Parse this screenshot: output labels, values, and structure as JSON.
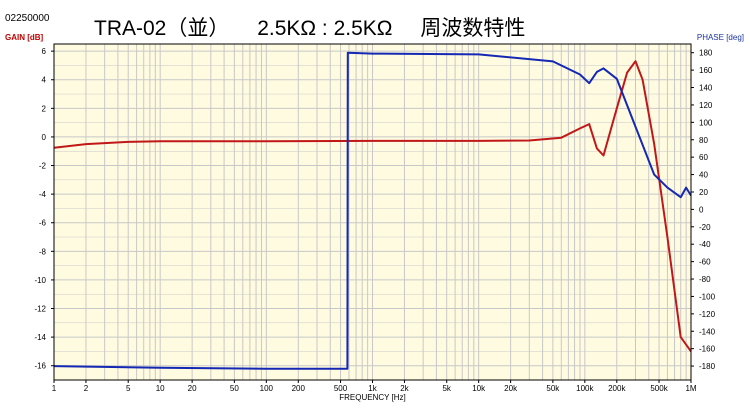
{
  "header": {
    "code": "02250000",
    "title_parts": [
      "TRA-02（並）",
      "2.5KΩ : 2.5KΩ",
      "周波数特性"
    ]
  },
  "colors": {
    "plot_bg": "#fffbe0",
    "grid": "#c8c8c8",
    "gain_series": "#c01818",
    "phase_series": "#1428b4",
    "gain_label": "#c00000",
    "phase_label": "#1a33a0"
  },
  "chart_data": {
    "type": "line",
    "title": "TRA-02（並）　2.5KΩ : 2.5KΩ　　周波数特性",
    "xlabel": "FREQUENCY [Hz]",
    "ylabel": "GAIN [dB]",
    "y2label": "PHASE [deg]",
    "xscale": "log",
    "xlim": [
      1,
      1000000
    ],
    "ylim": [
      -17,
      6.5
    ],
    "y2lim": [
      -196,
      190
    ],
    "grid": true,
    "x_ticks": [
      {
        "v": 1,
        "label": "1"
      },
      {
        "v": 2,
        "label": "2"
      },
      {
        "v": 5,
        "label": "5"
      },
      {
        "v": 10,
        "label": "10"
      },
      {
        "v": 20,
        "label": "20"
      },
      {
        "v": 50,
        "label": "50"
      },
      {
        "v": 100,
        "label": "100"
      },
      {
        "v": 200,
        "label": "200"
      },
      {
        "v": 500,
        "label": "500"
      },
      {
        "v": 1000,
        "label": "1k"
      },
      {
        "v": 2000,
        "label": "2k"
      },
      {
        "v": 5000,
        "label": "5k"
      },
      {
        "v": 10000,
        "label": "10k"
      },
      {
        "v": 20000,
        "label": "20k"
      },
      {
        "v": 50000,
        "label": "50k"
      },
      {
        "v": 100000,
        "label": "100k"
      },
      {
        "v": 200000,
        "label": "200k"
      },
      {
        "v": 500000,
        "label": "500k"
      },
      {
        "v": 1000000,
        "label": "1M"
      }
    ],
    "y_ticks": [
      6,
      4,
      2,
      0,
      -2,
      -4,
      -6,
      -8,
      -10,
      -12,
      -14,
      -16
    ],
    "y2_ticks": [
      180,
      160,
      140,
      120,
      100,
      80,
      60,
      40,
      20,
      0,
      -20,
      -40,
      -60,
      -80,
      -100,
      -120,
      -140,
      -160,
      -180
    ],
    "series": [
      {
        "name": "GAIN",
        "axis": "left",
        "color": "#c01818",
        "x": [
          1,
          2,
          5,
          10,
          100,
          1000,
          10000,
          30000,
          60000,
          90000,
          110000,
          130000,
          150000,
          200000,
          250000,
          300000,
          350000,
          450000,
          600000,
          800000,
          1000000
        ],
        "y": [
          -0.75,
          -0.5,
          -0.35,
          -0.3,
          -0.3,
          -0.28,
          -0.28,
          -0.25,
          -0.05,
          0.6,
          0.9,
          -0.8,
          -1.3,
          2.0,
          4.5,
          5.3,
          4.0,
          -0.5,
          -7.0,
          -14.0,
          -15.0
        ]
      },
      {
        "name": "PHASE",
        "axis": "right",
        "color": "#1428b4",
        "x": [
          1,
          10,
          100,
          500,
          580,
          585,
          1000,
          10000,
          50000,
          90000,
          110000,
          130000,
          150000,
          200000,
          300000,
          450000,
          600000,
          800000,
          900000,
          1000000
        ],
        "y": [
          -180,
          -182,
          -183,
          -183,
          -183,
          180,
          179,
          178,
          170,
          155,
          145,
          158,
          162,
          150,
          95,
          40,
          25,
          14,
          25,
          16
        ]
      }
    ]
  }
}
